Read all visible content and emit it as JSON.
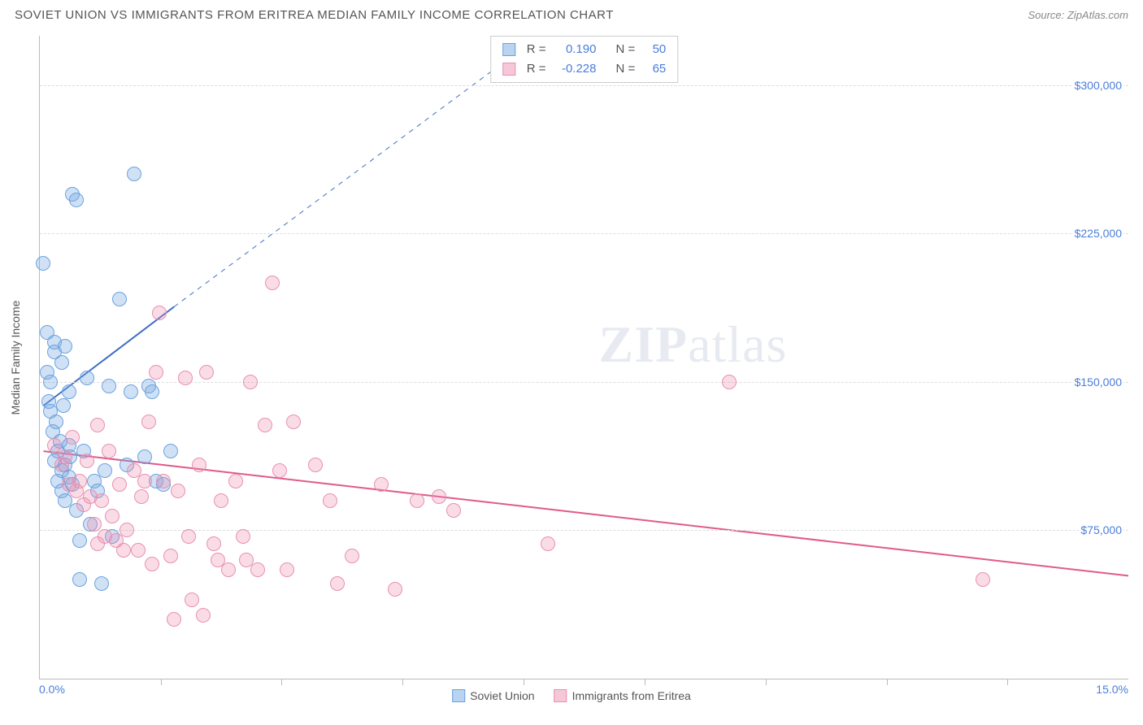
{
  "title": "SOVIET UNION VS IMMIGRANTS FROM ERITREA MEDIAN FAMILY INCOME CORRELATION CHART",
  "source_label": "Source: ",
  "source_value": "ZipAtlas.com",
  "watermark": "ZIPatlas",
  "y_axis_title": "Median Family Income",
  "chart": {
    "type": "scatter",
    "xlim": [
      0,
      15
    ],
    "ylim": [
      0,
      325000
    ],
    "x_min_label": "0.0%",
    "x_max_label": "15.0%",
    "x_tick_positions": [
      1.67,
      3.33,
      5.0,
      6.67,
      8.33,
      10.0,
      11.67,
      13.33
    ],
    "y_gridlines": [
      {
        "value": 75000,
        "label": "$75,000"
      },
      {
        "value": 150000,
        "label": "$150,000"
      },
      {
        "value": 225000,
        "label": "$225,000"
      },
      {
        "value": 300000,
        "label": "$300,000"
      }
    ],
    "background_color": "#ffffff",
    "grid_color": "#dddddd",
    "axis_color": "#bbbbbb",
    "tick_label_color": "#4a7ddb",
    "title_color": "#555555",
    "point_radius": 9,
    "point_stroke_width": 1,
    "series": [
      {
        "name": "Soviet Union",
        "fill_color": "rgba(120,170,225,0.35)",
        "stroke_color": "#6aa3de",
        "swatch_fill": "#b9d4f0",
        "swatch_stroke": "#6aa3de",
        "trend": {
          "x1": 0.05,
          "y1": 138000,
          "x2": 1.85,
          "y2": 188000,
          "dash_x2": 6.7,
          "dash_y2": 320000,
          "color": "#3f6fc9",
          "width": 2
        },
        "points": [
          [
            0.05,
            210000
          ],
          [
            0.1,
            155000
          ],
          [
            0.1,
            175000
          ],
          [
            0.12,
            140000
          ],
          [
            0.15,
            150000
          ],
          [
            0.15,
            135000
          ],
          [
            0.18,
            125000
          ],
          [
            0.2,
            165000
          ],
          [
            0.2,
            170000
          ],
          [
            0.2,
            110000
          ],
          [
            0.22,
            130000
          ],
          [
            0.25,
            115000
          ],
          [
            0.25,
            100000
          ],
          [
            0.28,
            120000
          ],
          [
            0.3,
            105000
          ],
          [
            0.3,
            95000
          ],
          [
            0.3,
            160000
          ],
          [
            0.32,
            138000
          ],
          [
            0.35,
            108000
          ],
          [
            0.35,
            90000
          ],
          [
            0.4,
            102000
          ],
          [
            0.4,
            118000
          ],
          [
            0.42,
            112000
          ],
          [
            0.45,
            98000
          ],
          [
            0.45,
            245000
          ],
          [
            0.5,
            242000
          ],
          [
            0.5,
            85000
          ],
          [
            0.55,
            70000
          ],
          [
            0.55,
            50000
          ],
          [
            0.6,
            115000
          ],
          [
            0.65,
            152000
          ],
          [
            0.7,
            78000
          ],
          [
            0.75,
            100000
          ],
          [
            0.8,
            95000
          ],
          [
            0.85,
            48000
          ],
          [
            0.9,
            105000
          ],
          [
            0.95,
            148000
          ],
          [
            1.0,
            72000
          ],
          [
            1.1,
            192000
          ],
          [
            1.2,
            108000
          ],
          [
            1.25,
            145000
          ],
          [
            1.3,
            255000
          ],
          [
            1.45,
            112000
          ],
          [
            1.5,
            148000
          ],
          [
            1.55,
            145000
          ],
          [
            1.6,
            100000
          ],
          [
            1.7,
            98000
          ],
          [
            1.8,
            115000
          ],
          [
            0.4,
            145000
          ],
          [
            0.35,
            168000
          ]
        ]
      },
      {
        "name": "Immigrants from Eritrea",
        "fill_color": "rgba(240,140,175,0.3)",
        "stroke_color": "#e890b0",
        "swatch_fill": "#f5c7d9",
        "swatch_stroke": "#e890b0",
        "trend": {
          "x1": 0.05,
          "y1": 115000,
          "x2": 15.0,
          "y2": 52000,
          "color": "#e05a8c",
          "width": 2
        },
        "points": [
          [
            0.2,
            118000
          ],
          [
            0.3,
            108000
          ],
          [
            0.35,
            112000
          ],
          [
            0.4,
            98000
          ],
          [
            0.45,
            122000
          ],
          [
            0.5,
            95000
          ],
          [
            0.55,
            100000
          ],
          [
            0.6,
            88000
          ],
          [
            0.65,
            110000
          ],
          [
            0.7,
            92000
          ],
          [
            0.75,
            78000
          ],
          [
            0.8,
            128000
          ],
          [
            0.8,
            68000
          ],
          [
            0.85,
            90000
          ],
          [
            0.9,
            72000
          ],
          [
            0.95,
            115000
          ],
          [
            1.0,
            82000
          ],
          [
            1.05,
            70000
          ],
          [
            1.1,
            98000
          ],
          [
            1.15,
            65000
          ],
          [
            1.2,
            75000
          ],
          [
            1.3,
            105000
          ],
          [
            1.35,
            65000
          ],
          [
            1.4,
            92000
          ],
          [
            1.5,
            130000
          ],
          [
            1.55,
            58000
          ],
          [
            1.6,
            155000
          ],
          [
            1.65,
            185000
          ],
          [
            1.7,
            100000
          ],
          [
            1.8,
            62000
          ],
          [
            1.85,
            30000
          ],
          [
            1.9,
            95000
          ],
          [
            2.0,
            152000
          ],
          [
            2.05,
            72000
          ],
          [
            2.1,
            40000
          ],
          [
            2.2,
            108000
          ],
          [
            2.25,
            32000
          ],
          [
            2.3,
            155000
          ],
          [
            2.4,
            68000
          ],
          [
            2.45,
            60000
          ],
          [
            2.5,
            90000
          ],
          [
            2.6,
            55000
          ],
          [
            2.7,
            100000
          ],
          [
            2.8,
            72000
          ],
          [
            2.85,
            60000
          ],
          [
            2.9,
            150000
          ],
          [
            3.0,
            55000
          ],
          [
            3.1,
            128000
          ],
          [
            3.2,
            200000
          ],
          [
            3.3,
            105000
          ],
          [
            3.4,
            55000
          ],
          [
            3.5,
            130000
          ],
          [
            3.8,
            108000
          ],
          [
            4.0,
            90000
          ],
          [
            4.1,
            48000
          ],
          [
            4.3,
            62000
          ],
          [
            4.7,
            98000
          ],
          [
            4.9,
            45000
          ],
          [
            5.2,
            90000
          ],
          [
            5.5,
            92000
          ],
          [
            5.7,
            85000
          ],
          [
            7.0,
            68000
          ],
          [
            9.5,
            150000
          ],
          [
            13.0,
            50000
          ],
          [
            1.45,
            100000
          ]
        ]
      }
    ]
  },
  "stats": {
    "rows": [
      {
        "r_label": "R =",
        "r_value": "0.190",
        "n_label": "N =",
        "n_value": "50",
        "swatch_fill": "#b9d4f0",
        "swatch_stroke": "#6aa3de"
      },
      {
        "r_label": "R =",
        "r_value": "-0.228",
        "n_label": "N =",
        "n_value": "65",
        "swatch_fill": "#f5c7d9",
        "swatch_stroke": "#e890b0"
      }
    ]
  },
  "legend": [
    {
      "label": "Soviet Union",
      "swatch_fill": "#b9d4f0",
      "swatch_stroke": "#6aa3de"
    },
    {
      "label": "Immigrants from Eritrea",
      "swatch_fill": "#f5c7d9",
      "swatch_stroke": "#e890b0"
    }
  ]
}
